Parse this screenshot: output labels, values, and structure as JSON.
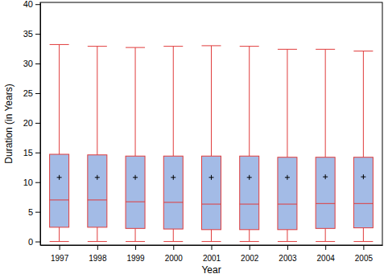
{
  "chart_data": {
    "type": "box",
    "x_label": "Year",
    "y_label": "Duration (in Years)",
    "categories": [
      "1997",
      "1998",
      "1999",
      "2000",
      "2001",
      "2002",
      "2003",
      "2004",
      "2005"
    ],
    "boxes": [
      {
        "min": 0,
        "q1": 2.4,
        "median": 7.0,
        "q3": 14.7,
        "max": 33.2,
        "mean": 10.8
      },
      {
        "min": 0,
        "q1": 2.4,
        "median": 7.0,
        "q3": 14.6,
        "max": 32.9,
        "mean": 10.8
      },
      {
        "min": 0,
        "q1": 2.2,
        "median": 6.7,
        "q3": 14.4,
        "max": 32.7,
        "mean": 10.8
      },
      {
        "min": 0,
        "q1": 2.1,
        "median": 6.6,
        "q3": 14.4,
        "max": 32.9,
        "mean": 10.8
      },
      {
        "min": 0,
        "q1": 2.0,
        "median": 6.3,
        "q3": 14.4,
        "max": 33.0,
        "mean": 10.8
      },
      {
        "min": 0,
        "q1": 2.0,
        "median": 6.3,
        "q3": 14.4,
        "max": 32.9,
        "mean": 10.8
      },
      {
        "min": 0,
        "q1": 2.0,
        "median": 6.3,
        "q3": 14.2,
        "max": 32.4,
        "mean": 10.8
      },
      {
        "min": 0,
        "q1": 2.2,
        "median": 6.4,
        "q3": 14.2,
        "max": 32.4,
        "mean": 10.9
      },
      {
        "min": 0,
        "q1": 2.3,
        "median": 6.4,
        "q3": 14.2,
        "max": 32.1,
        "mean": 10.9
      }
    ],
    "color": "#a3bbe6",
    "marker": "plus",
    "ylim": [
      -0.6,
      40.3
    ],
    "yticks": [
      0,
      5,
      10,
      15,
      20,
      25,
      30,
      35,
      40
    ],
    "grid": false
  }
}
